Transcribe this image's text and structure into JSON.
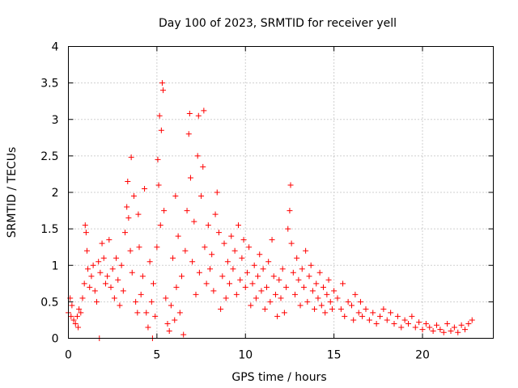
{
  "chart_data": {
    "type": "scatter",
    "title": "Day 100 of 2023, SRMTID for receiver yell",
    "xlabel": "GPS time / hours",
    "ylabel": "SRMTID / TECUs",
    "xlim": [
      0,
      24
    ],
    "ylim": [
      0,
      4
    ],
    "xticks": [
      0,
      5,
      10,
      15,
      20
    ],
    "xtick_labels": [
      "0",
      "5",
      "10",
      "15",
      "20"
    ],
    "yticks": [
      0,
      0.5,
      1,
      1.5,
      2,
      2.5,
      3,
      3.5,
      4
    ],
    "ytick_labels": [
      "0",
      "0.5",
      "1",
      "1.5",
      "2",
      "2.5",
      "3",
      "3.5",
      "4"
    ],
    "grid": true,
    "marker": "+",
    "color": "#ff0000",
    "series": [
      {
        "name": "SRMTID",
        "points": [
          [
            0.0,
            0.35
          ],
          [
            0.1,
            0.55
          ],
          [
            0.15,
            0.3
          ],
          [
            0.2,
            0.45
          ],
          [
            0.3,
            0.25
          ],
          [
            0.4,
            0.2
          ],
          [
            0.5,
            0.3
          ],
          [
            0.55,
            0.15
          ],
          [
            0.6,
            0.4
          ],
          [
            0.7,
            0.35
          ],
          [
            0.8,
            0.55
          ],
          [
            0.9,
            0.75
          ],
          [
            0.95,
            1.55
          ],
          [
            1.0,
            1.45
          ],
          [
            1.05,
            1.2
          ],
          [
            1.1,
            0.95
          ],
          [
            1.2,
            0.7
          ],
          [
            1.3,
            0.85
          ],
          [
            1.4,
            1.0
          ],
          [
            1.5,
            0.65
          ],
          [
            1.6,
            0.5
          ],
          [
            1.7,
            1.05
          ],
          [
            1.75,
            0.0
          ],
          [
            1.8,
            0.9
          ],
          [
            1.9,
            1.3
          ],
          [
            2.0,
            1.1
          ],
          [
            2.1,
            0.75
          ],
          [
            2.2,
            0.85
          ],
          [
            2.3,
            1.35
          ],
          [
            2.4,
            0.7
          ],
          [
            2.5,
            0.95
          ],
          [
            2.6,
            0.55
          ],
          [
            2.7,
            1.1
          ],
          [
            2.8,
            0.8
          ],
          [
            2.9,
            0.45
          ],
          [
            3.0,
            1.0
          ],
          [
            3.1,
            0.65
          ],
          [
            3.2,
            1.45
          ],
          [
            3.3,
            1.8
          ],
          [
            3.35,
            2.15
          ],
          [
            3.4,
            1.65
          ],
          [
            3.5,
            1.2
          ],
          [
            3.55,
            2.48
          ],
          [
            3.6,
            0.9
          ],
          [
            3.7,
            1.95
          ],
          [
            3.8,
            0.5
          ],
          [
            3.9,
            0.35
          ],
          [
            3.95,
            1.7
          ],
          [
            4.0,
            1.25
          ],
          [
            4.1,
            0.6
          ],
          [
            4.2,
            0.85
          ],
          [
            4.3,
            2.05
          ],
          [
            4.4,
            0.35
          ],
          [
            4.5,
            0.15
          ],
          [
            4.6,
            1.05
          ],
          [
            4.7,
            0.5
          ],
          [
            4.75,
            0.0
          ],
          [
            4.8,
            0.75
          ],
          [
            4.9,
            0.3
          ],
          [
            5.0,
            1.25
          ],
          [
            5.05,
            2.45
          ],
          [
            5.1,
            2.1
          ],
          [
            5.15,
            3.05
          ],
          [
            5.2,
            1.55
          ],
          [
            5.25,
            2.85
          ],
          [
            5.3,
            3.5
          ],
          [
            5.35,
            3.4
          ],
          [
            5.4,
            1.75
          ],
          [
            5.5,
            0.55
          ],
          [
            5.6,
            0.2
          ],
          [
            5.7,
            0.1
          ],
          [
            5.8,
            0.45
          ],
          [
            5.9,
            1.1
          ],
          [
            6.0,
            0.25
          ],
          [
            6.05,
            1.95
          ],
          [
            6.1,
            0.7
          ],
          [
            6.2,
            1.4
          ],
          [
            6.3,
            0.35
          ],
          [
            6.4,
            0.85
          ],
          [
            6.5,
            0.05
          ],
          [
            6.6,
            1.2
          ],
          [
            6.7,
            1.75
          ],
          [
            6.8,
            2.8
          ],
          [
            6.85,
            3.08
          ],
          [
            6.9,
            2.2
          ],
          [
            7.0,
            1.05
          ],
          [
            7.1,
            1.6
          ],
          [
            7.2,
            0.6
          ],
          [
            7.3,
            2.5
          ],
          [
            7.35,
            3.05
          ],
          [
            7.4,
            0.9
          ],
          [
            7.5,
            1.95
          ],
          [
            7.6,
            2.35
          ],
          [
            7.65,
            3.12
          ],
          [
            7.7,
            1.25
          ],
          [
            7.8,
            0.75
          ],
          [
            7.9,
            1.55
          ],
          [
            8.0,
            0.95
          ],
          [
            8.1,
            1.15
          ],
          [
            8.2,
            0.65
          ],
          [
            8.3,
            1.7
          ],
          [
            8.4,
            2.0
          ],
          [
            8.5,
            1.45
          ],
          [
            8.6,
            0.4
          ],
          [
            8.7,
            0.85
          ],
          [
            8.8,
            1.3
          ],
          [
            8.9,
            0.55
          ],
          [
            9.0,
            1.05
          ],
          [
            9.1,
            0.75
          ],
          [
            9.2,
            1.4
          ],
          [
            9.3,
            0.95
          ],
          [
            9.4,
            1.2
          ],
          [
            9.5,
            0.6
          ],
          [
            9.6,
            1.55
          ],
          [
            9.7,
            0.8
          ],
          [
            9.8,
            1.1
          ],
          [
            9.9,
            1.35
          ],
          [
            10.0,
            0.7
          ],
          [
            10.1,
            0.9
          ],
          [
            10.2,
            1.25
          ],
          [
            10.3,
            0.45
          ],
          [
            10.4,
            0.75
          ],
          [
            10.5,
            1.0
          ],
          [
            10.6,
            0.55
          ],
          [
            10.7,
            0.85
          ],
          [
            10.8,
            1.15
          ],
          [
            10.9,
            0.65
          ],
          [
            11.0,
            0.95
          ],
          [
            11.1,
            0.4
          ],
          [
            11.2,
            0.7
          ],
          [
            11.3,
            1.05
          ],
          [
            11.4,
            0.5
          ],
          [
            11.5,
            1.35
          ],
          [
            11.6,
            0.85
          ],
          [
            11.7,
            0.6
          ],
          [
            11.8,
            0.3
          ],
          [
            11.9,
            0.8
          ],
          [
            12.0,
            0.55
          ],
          [
            12.1,
            0.95
          ],
          [
            12.2,
            0.35
          ],
          [
            12.3,
            0.7
          ],
          [
            12.4,
            1.5
          ],
          [
            12.5,
            1.75
          ],
          [
            12.55,
            2.1
          ],
          [
            12.6,
            1.3
          ],
          [
            12.7,
            0.9
          ],
          [
            12.8,
            0.6
          ],
          [
            12.9,
            1.1
          ],
          [
            13.0,
            0.8
          ],
          [
            13.1,
            0.45
          ],
          [
            13.2,
            0.95
          ],
          [
            13.3,
            0.7
          ],
          [
            13.4,
            1.2
          ],
          [
            13.5,
            0.5
          ],
          [
            13.6,
            0.85
          ],
          [
            13.7,
            1.0
          ],
          [
            13.8,
            0.65
          ],
          [
            13.9,
            0.4
          ],
          [
            14.0,
            0.75
          ],
          [
            14.1,
            0.55
          ],
          [
            14.2,
            0.9
          ],
          [
            14.3,
            0.45
          ],
          [
            14.4,
            0.7
          ],
          [
            14.5,
            0.35
          ],
          [
            14.6,
            0.6
          ],
          [
            14.7,
            0.8
          ],
          [
            14.8,
            0.5
          ],
          [
            14.9,
            0.4
          ],
          [
            15.0,
            0.65
          ],
          [
            15.2,
            0.55
          ],
          [
            15.4,
            0.4
          ],
          [
            15.5,
            0.75
          ],
          [
            15.6,
            0.3
          ],
          [
            15.8,
            0.5
          ],
          [
            16.0,
            0.45
          ],
          [
            16.1,
            0.25
          ],
          [
            16.2,
            0.6
          ],
          [
            16.4,
            0.35
          ],
          [
            16.5,
            0.5
          ],
          [
            16.6,
            0.3
          ],
          [
            16.8,
            0.4
          ],
          [
            17.0,
            0.25
          ],
          [
            17.2,
            0.35
          ],
          [
            17.4,
            0.2
          ],
          [
            17.6,
            0.3
          ],
          [
            17.8,
            0.4
          ],
          [
            18.0,
            0.25
          ],
          [
            18.2,
            0.35
          ],
          [
            18.4,
            0.2
          ],
          [
            18.6,
            0.3
          ],
          [
            18.8,
            0.15
          ],
          [
            19.0,
            0.25
          ],
          [
            19.2,
            0.2
          ],
          [
            19.4,
            0.3
          ],
          [
            19.6,
            0.15
          ],
          [
            19.8,
            0.22
          ],
          [
            20.0,
            0.12
          ],
          [
            20.2,
            0.2
          ],
          [
            20.4,
            0.15
          ],
          [
            20.6,
            0.1
          ],
          [
            20.8,
            0.18
          ],
          [
            21.0,
            0.12
          ],
          [
            21.2,
            0.08
          ],
          [
            21.4,
            0.2
          ],
          [
            21.6,
            0.1
          ],
          [
            21.8,
            0.15
          ],
          [
            22.0,
            0.08
          ],
          [
            22.2,
            0.18
          ],
          [
            22.4,
            0.12
          ],
          [
            22.6,
            0.2
          ],
          [
            22.8,
            0.25
          ]
        ]
      }
    ]
  }
}
